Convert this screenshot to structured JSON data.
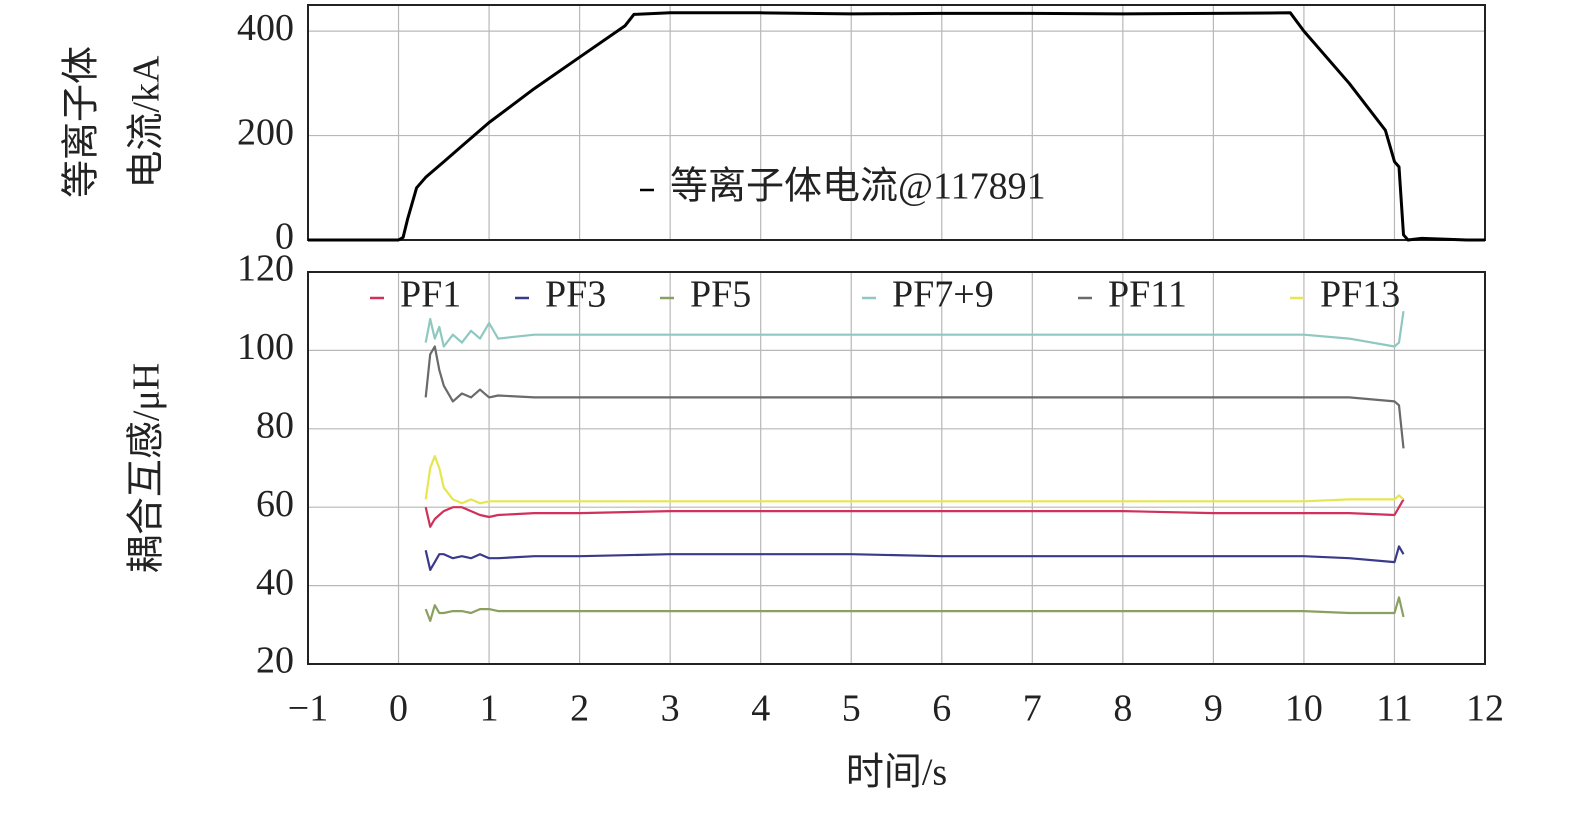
{
  "chart_data": [
    {
      "type": "line",
      "ylabel": [
        "等离子体",
        "电流/kA"
      ],
      "x": [
        -1,
        0,
        0.05,
        0.1,
        0.2,
        0.3,
        0.5,
        0.7,
        1.0,
        1.5,
        2.0,
        2.5,
        2.6,
        3,
        4,
        5,
        6,
        7,
        8,
        9,
        9.85,
        10,
        10.5,
        10.9,
        11.0,
        11.05,
        11.1,
        11.15,
        11.3,
        11.5,
        11.8,
        12
      ],
      "series": [
        {
          "name": "等离子体电流@117891",
          "color": "#000000",
          "values": [
            0,
            0,
            5,
            40,
            100,
            120,
            150,
            180,
            225,
            290,
            350,
            410,
            432,
            435,
            435,
            433,
            434,
            434,
            433,
            434,
            435,
            400,
            300,
            210,
            150,
            140,
            10,
            0,
            3,
            2,
            0,
            0
          ]
        }
      ],
      "xlim": [
        -1,
        12
      ],
      "xticks": [
        -1,
        0,
        1,
        2,
        3,
        4,
        5,
        6,
        7,
        8,
        9,
        10,
        11,
        12
      ],
      "ylim": [
        0,
        450
      ],
      "yticks": [
        0,
        200,
        400
      ],
      "grid": true
    },
    {
      "type": "line",
      "ylabel": "耦合互感/μH",
      "xlabel": "时间/s",
      "x": [
        0.3,
        0.35,
        0.4,
        0.45,
        0.5,
        0.6,
        0.7,
        0.8,
        0.9,
        1.0,
        1.1,
        1.5,
        2,
        3,
        4,
        5,
        6,
        7,
        8,
        9,
        10,
        10.5,
        11,
        11.05,
        11.1
      ],
      "series": [
        {
          "name": "PF1",
          "color": "#d0305a",
          "values": [
            60,
            55,
            57,
            58,
            59,
            60,
            60,
            59,
            58,
            57.5,
            58,
            58.5,
            58.5,
            59,
            59,
            59,
            59,
            59,
            59,
            58.5,
            58.5,
            58.5,
            58,
            60,
            62
          ]
        },
        {
          "name": "PF3",
          "color": "#3a3a8a",
          "values": [
            49,
            44,
            46,
            48,
            48,
            47,
            47.5,
            47,
            48,
            47,
            47,
            47.5,
            47.5,
            48,
            48,
            48,
            47.5,
            47.5,
            47.5,
            47.5,
            47.5,
            47,
            46,
            50,
            48
          ]
        },
        {
          "name": "PF5",
          "color": "#8aa060",
          "values": [
            34,
            31,
            35,
            33,
            33,
            33.5,
            33.5,
            33,
            34,
            34,
            33.5,
            33.5,
            33.5,
            33.5,
            33.5,
            33.5,
            33.5,
            33.5,
            33.5,
            33.5,
            33.5,
            33,
            33,
            37,
            32
          ]
        },
        {
          "name": "PF7+9",
          "color": "#8fc8c0",
          "values": [
            102,
            108,
            103,
            106,
            101,
            104,
            102,
            105,
            103,
            107,
            103,
            104,
            104,
            104,
            104,
            104,
            104,
            104,
            104,
            104,
            104,
            103,
            101,
            102,
            110
          ]
        },
        {
          "name": "PF11",
          "color": "#6a6a6a",
          "values": [
            88,
            99,
            101,
            95,
            91,
            87,
            89,
            88,
            90,
            88,
            88.5,
            88,
            88,
            88,
            88,
            88,
            88,
            88,
            88,
            88,
            88,
            88,
            87,
            86,
            75
          ]
        },
        {
          "name": "PF13",
          "color": "#e6e650",
          "values": [
            62,
            70,
            73,
            70,
            65,
            62,
            61,
            62,
            61,
            61.5,
            61.5,
            61.5,
            61.5,
            61.5,
            61.5,
            61.5,
            61.5,
            61.5,
            61.5,
            61.5,
            61.5,
            62,
            62,
            63,
            62
          ]
        }
      ],
      "xlim": [
        -1,
        12
      ],
      "xticks": [
        {
          "value": -1,
          "label": "−1"
        },
        0,
        1,
        2,
        3,
        4,
        5,
        6,
        7,
        8,
        9,
        10,
        11,
        12
      ],
      "ylim": [
        20,
        120
      ],
      "yticks": [
        20,
        40,
        60,
        80,
        100,
        120
      ],
      "grid": true
    }
  ]
}
